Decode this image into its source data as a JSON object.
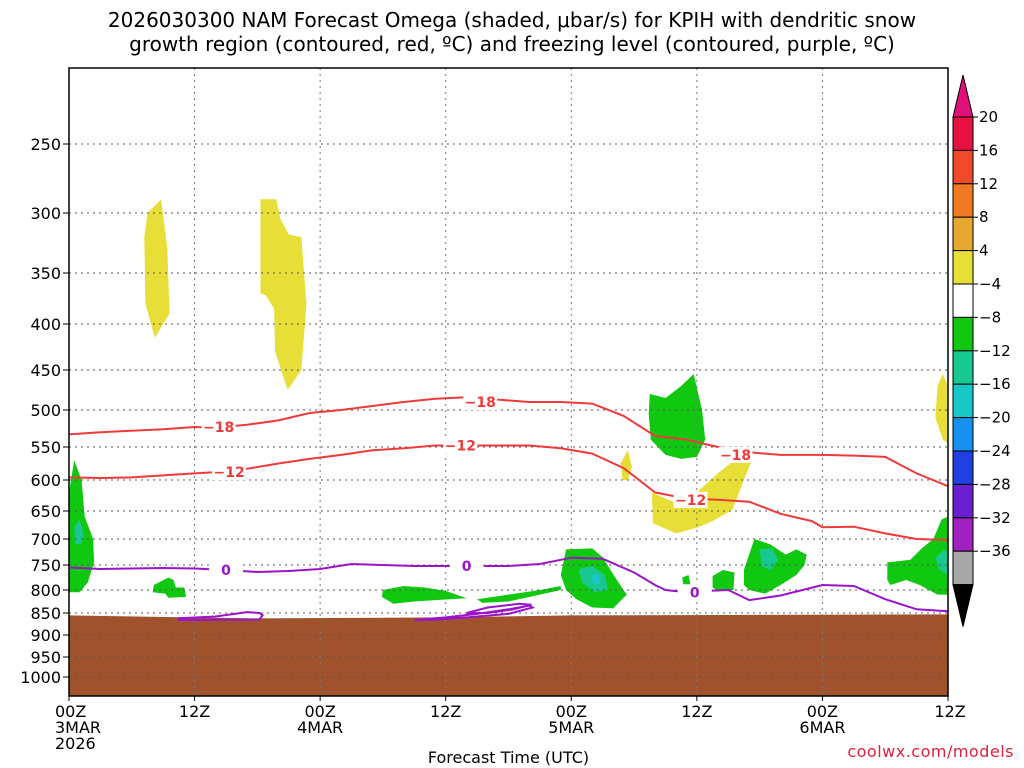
{
  "header": {
    "title_line1": "2026030300 NAM Forecast Omega (shaded, μbar/s) for KPIH with dendritic snow",
    "title_line2": "growth region (contoured, red, ºC) and freezing level (contoured, purple, ºC)"
  },
  "credit": "coolwx.com/models",
  "chart_data": {
    "type": "time-height cross section",
    "title": "2026030300 NAM Forecast Omega (shaded, μbar/s) for KPIH with dendritic snow growth region (contoured, red, ºC) and freezing level (contoured, purple, ºC)",
    "xlabel": "Forecast Time (UTC)",
    "ylabel": "",
    "x_range_hours": [
      0,
      84
    ],
    "y_range_hPa": [
      200,
      1050
    ],
    "grid": true,
    "x_ticks": [
      {
        "hour": 0,
        "lines": [
          "00Z",
          "3MAR",
          "2026"
        ]
      },
      {
        "hour": 12,
        "lines": [
          "12Z"
        ]
      },
      {
        "hour": 24,
        "lines": [
          "00Z",
          "4MAR"
        ]
      },
      {
        "hour": 36,
        "lines": [
          "12Z"
        ]
      },
      {
        "hour": 48,
        "lines": [
          "00Z",
          "5MAR"
        ]
      },
      {
        "hour": 60,
        "lines": [
          "12Z"
        ]
      },
      {
        "hour": 72,
        "lines": [
          "00Z",
          "6MAR"
        ]
      },
      {
        "hour": 84,
        "lines": [
          "12Z"
        ]
      }
    ],
    "y_ticks": [
      "250",
      "300",
      "350",
      "400",
      "450",
      "500",
      "550",
      "600",
      "650",
      "700",
      "750",
      "800",
      "850",
      "900",
      "950",
      "1000"
    ],
    "y_tick_values": [
      250,
      300,
      350,
      400,
      450,
      500,
      550,
      600,
      650,
      700,
      750,
      800,
      850,
      900,
      950,
      1000
    ],
    "colorbar": {
      "labels": [
        "20",
        "16",
        "12",
        "8",
        "4",
        "−4",
        "−8",
        "−12",
        "−16",
        "−20",
        "−24",
        "−28",
        "−32",
        "−36"
      ],
      "colors": [
        "#e8103e",
        "#f04a28",
        "#f07a22",
        "#e8a830",
        "#e8de38",
        "#ffffff",
        "#10c810",
        "#18c890",
        "#18c8c8",
        "#1890f0",
        "#2040e0",
        "#6a20d0",
        "#a020c0",
        "#a8a8a8"
      ],
      "top_arrow_color": "#e0107a",
      "bottom_arrow_color": "#000000"
    },
    "contour_labels": {
      "dgz_upper": "−18",
      "dgz_lower": "−12",
      "freezing": "0"
    },
    "dgz_minus18": [
      [
        0,
        533
      ],
      [
        3,
        530
      ],
      [
        6,
        528
      ],
      [
        9,
        526
      ],
      [
        12,
        523
      ],
      [
        14,
        524
      ],
      [
        17,
        520
      ],
      [
        20,
        514
      ],
      [
        23,
        504
      ],
      [
        26,
        500
      ],
      [
        29,
        495
      ],
      [
        32,
        490
      ],
      [
        35,
        486
      ],
      [
        38,
        484
      ],
      [
        41,
        487
      ],
      [
        44,
        490
      ],
      [
        47,
        490
      ],
      [
        50,
        492
      ],
      [
        53,
        508
      ],
      [
        56,
        535
      ],
      [
        59,
        540
      ],
      [
        62,
        550
      ],
      [
        65,
        558
      ],
      [
        68,
        562
      ],
      [
        72,
        562
      ],
      [
        75,
        563
      ],
      [
        78,
        565
      ],
      [
        81,
        590
      ],
      [
        84,
        610
      ]
    ],
    "dgz_minus12": [
      [
        0,
        596
      ],
      [
        3,
        597
      ],
      [
        6,
        596
      ],
      [
        9,
        593
      ],
      [
        12,
        590
      ],
      [
        14,
        588
      ],
      [
        17,
        583
      ],
      [
        20,
        575
      ],
      [
        23,
        568
      ],
      [
        26,
        562
      ],
      [
        29,
        555
      ],
      [
        32,
        552
      ],
      [
        35,
        548
      ],
      [
        38,
        548
      ],
      [
        41,
        548
      ],
      [
        44,
        548
      ],
      [
        47,
        552
      ],
      [
        50,
        560
      ],
      [
        53,
        582
      ],
      [
        56,
        620
      ],
      [
        59,
        630
      ],
      [
        62,
        632
      ],
      [
        65,
        635
      ],
      [
        68,
        655
      ],
      [
        71,
        668
      ],
      [
        72,
        679
      ],
      [
        75,
        678
      ],
      [
        78,
        690
      ],
      [
        81,
        700
      ],
      [
        84,
        702
      ]
    ],
    "freezing_level": [
      [
        0,
        755
      ],
      [
        3,
        758
      ],
      [
        6,
        757
      ],
      [
        9,
        756
      ],
      [
        12,
        757
      ],
      [
        15,
        760
      ],
      [
        18,
        764
      ],
      [
        21,
        762
      ],
      [
        24,
        758
      ],
      [
        27,
        748
      ],
      [
        30,
        750
      ],
      [
        33,
        752
      ],
      [
        36,
        752
      ],
      [
        39,
        752
      ],
      [
        42,
        752
      ],
      [
        45,
        748
      ],
      [
        48,
        736
      ],
      [
        51,
        738
      ],
      [
        54,
        765
      ],
      [
        56,
        790
      ],
      [
        57,
        800
      ],
      [
        59,
        805
      ],
      [
        61,
        802
      ],
      [
        63,
        800
      ],
      [
        65,
        822
      ],
      [
        68,
        812
      ],
      [
        72,
        790
      ],
      [
        75,
        792
      ],
      [
        78,
        820
      ],
      [
        81,
        842
      ],
      [
        84,
        846
      ]
    ],
    "omega_areas": [
      {
        "color": "#e8de38",
        "value_range": "4 to 8",
        "near": {
          "hour": 8,
          "hPa": 350
        }
      },
      {
        "color": "#e8de38",
        "value_range": "4 to 8",
        "near": {
          "hour": 20,
          "hPa": 380
        }
      },
      {
        "color": "#e8de38",
        "value_range": "4 to 8",
        "near": {
          "hour": 60,
          "hPa": 620
        }
      },
      {
        "color": "#10c810",
        "value_range": "-4 to -8",
        "near": {
          "hour": 58,
          "hPa": 510
        }
      },
      {
        "color": "#10c810",
        "value_range": "-4 to -8",
        "near": {
          "hour": 50,
          "hPa": 770
        }
      },
      {
        "color": "#10c810",
        "value_range": "-4 to -8",
        "near": {
          "hour": 83,
          "hPa": 730
        }
      },
      {
        "color": "#18c890",
        "value_range": "-8 to -12",
        "near": {
          "hour": 50,
          "hPa": 780
        }
      }
    ],
    "terrain_color": "#a0522d",
    "terrain_top_hPa": 860
  },
  "axis": {
    "xlabel": "Forecast Time (UTC)"
  }
}
